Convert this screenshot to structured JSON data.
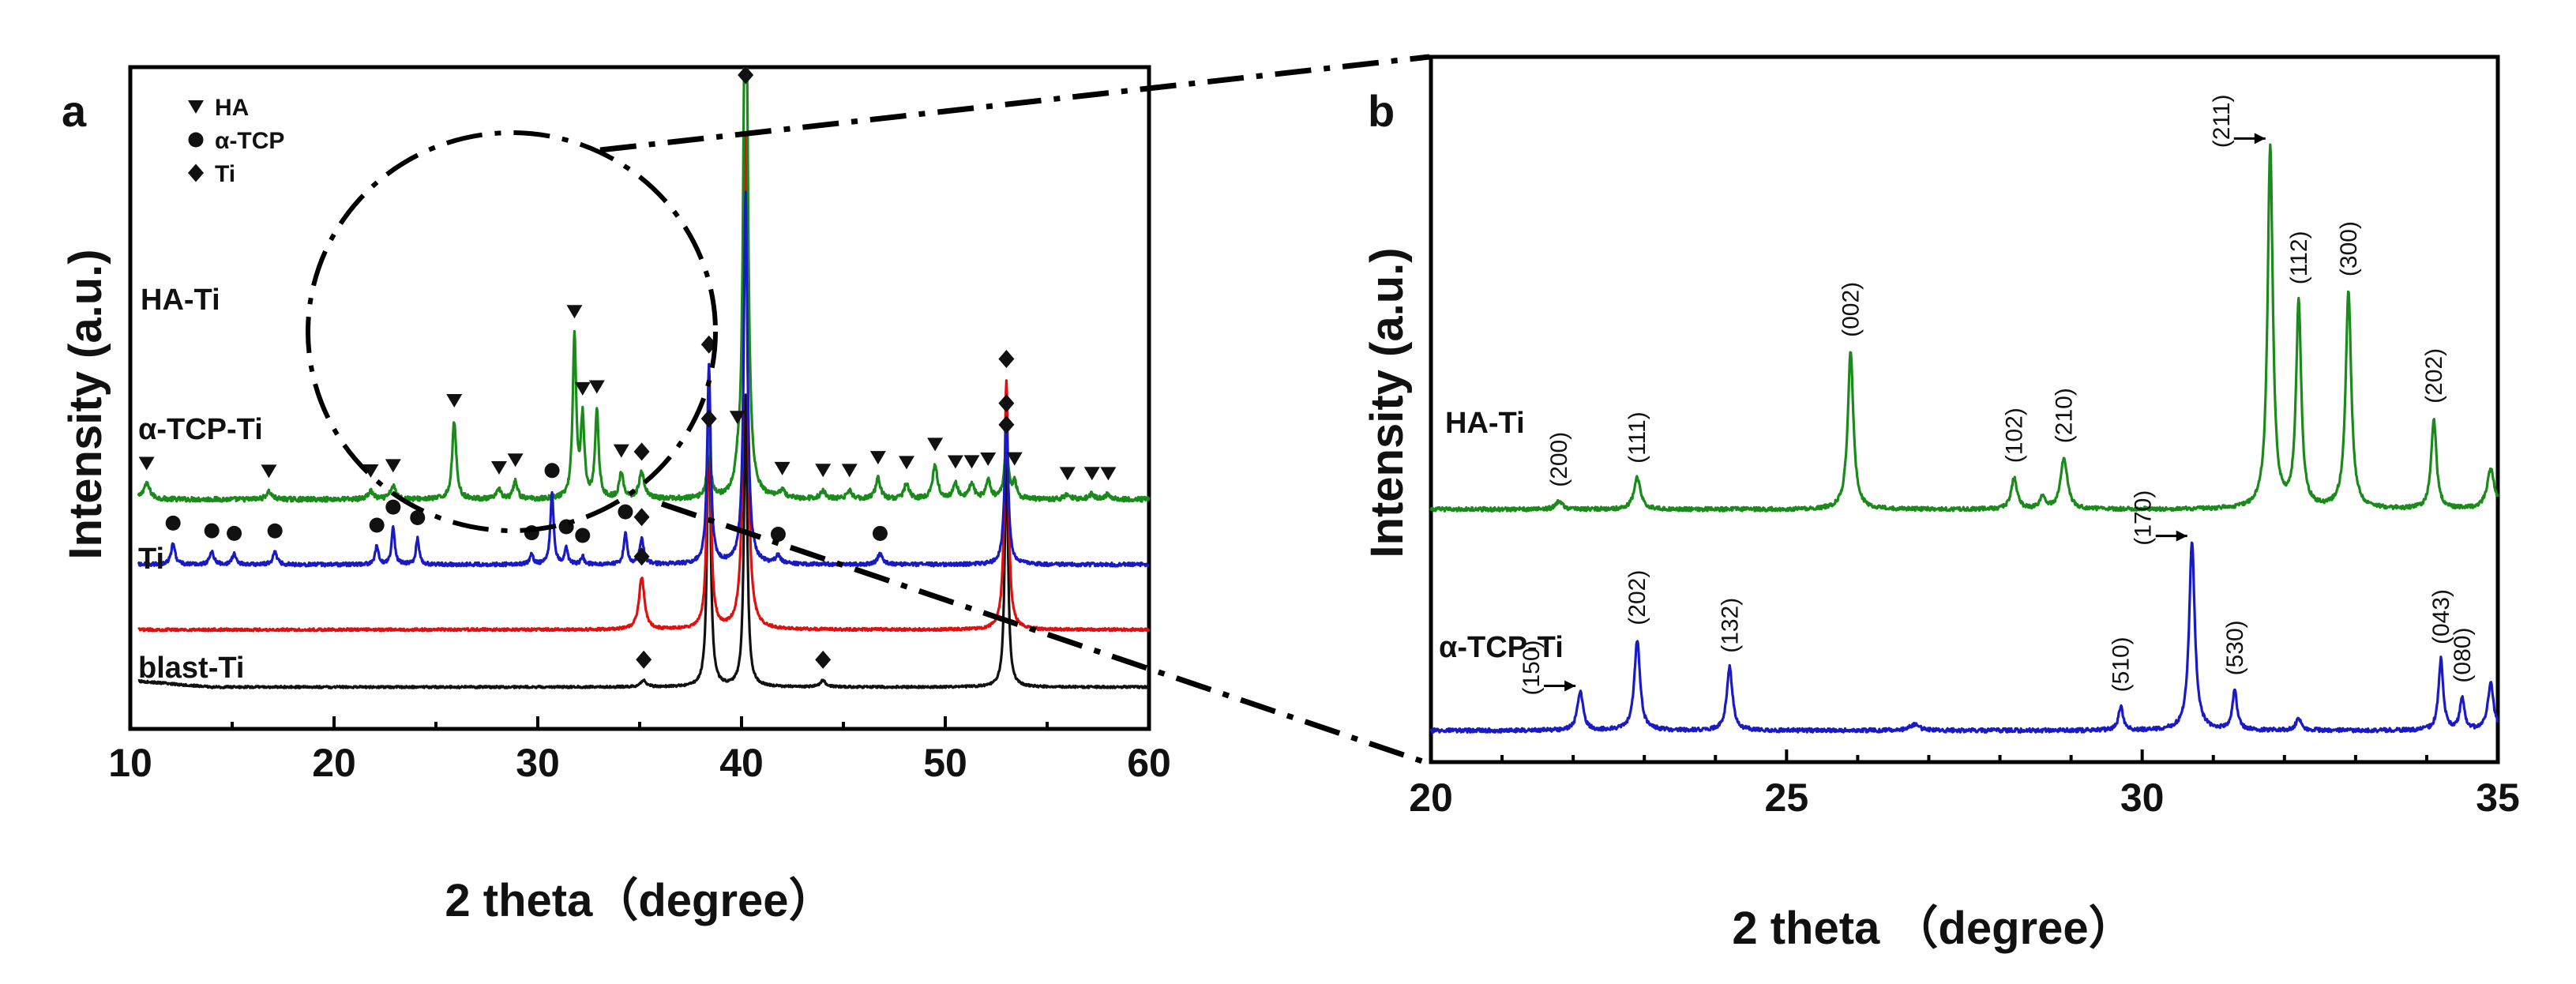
{
  "chart_data": [
    {
      "panel": "a",
      "type": "line",
      "xlabel": "2 theta（degree）",
      "ylabel": "Intensity (a.u.)",
      "xlim": [
        10,
        60
      ],
      "xticks": [
        10,
        20,
        30,
        40,
        50,
        60
      ],
      "y_ticks_shown": false,
      "grid": false,
      "legend": {
        "position": "top-left",
        "entries": [
          {
            "label": "HA",
            "marker": "triangle-down"
          },
          {
            "label": "α-TCP",
            "marker": "circle"
          },
          {
            "label": "Ti",
            "marker": "diamond"
          }
        ]
      },
      "series": [
        {
          "name": "HA-Ti",
          "color": "#1a8a1a",
          "baseline": 0.72,
          "noise": 0.018,
          "peaks": [
            [
              10.8,
              0.06,
              0.25
            ],
            [
              16.8,
              0.03,
              0.2
            ],
            [
              21.8,
              0.03,
              0.2
            ],
            [
              22.9,
              0.05,
              0.2
            ],
            [
              25.9,
              0.3,
              0.15
            ],
            [
              28.1,
              0.04,
              0.15
            ],
            [
              28.9,
              0.07,
              0.15
            ],
            [
              31.8,
              0.62,
              0.13
            ],
            [
              32.2,
              0.3,
              0.13
            ],
            [
              32.9,
              0.34,
              0.13
            ],
            [
              34.1,
              0.1,
              0.15
            ],
            [
              35.1,
              0.1,
              0.2
            ],
            [
              38.4,
              0.22,
              0.13
            ],
            [
              39.8,
              0.05,
              0.15
            ],
            [
              40.2,
              2.6,
              0.14
            ],
            [
              42.0,
              0.03,
              0.2
            ],
            [
              44.0,
              0.03,
              0.2
            ],
            [
              45.3,
              0.03,
              0.2
            ],
            [
              46.7,
              0.08,
              0.18
            ],
            [
              48.1,
              0.06,
              0.18
            ],
            [
              49.5,
              0.13,
              0.18
            ],
            [
              50.5,
              0.06,
              0.18
            ],
            [
              51.3,
              0.06,
              0.18
            ],
            [
              52.1,
              0.07,
              0.18
            ],
            [
              53.0,
              0.2,
              0.15
            ],
            [
              53.4,
              0.06,
              0.15
            ],
            [
              56.0,
              0.02,
              0.2
            ],
            [
              57.2,
              0.02,
              0.2
            ],
            [
              58.0,
              0.02,
              0.2
            ]
          ]
        },
        {
          "name": "α-TCP-Ti",
          "color": "#1a1ac4",
          "baseline": 0.47,
          "noise": 0.014,
          "peaks": [
            [
              12.1,
              0.08,
              0.15
            ],
            [
              14.0,
              0.05,
              0.15
            ],
            [
              15.1,
              0.04,
              0.15
            ],
            [
              17.1,
              0.05,
              0.15
            ],
            [
              22.1,
              0.07,
              0.12
            ],
            [
              22.9,
              0.14,
              0.12
            ],
            [
              24.1,
              0.1,
              0.12
            ],
            [
              29.7,
              0.04,
              0.12
            ],
            [
              30.7,
              0.28,
              0.12
            ],
            [
              31.4,
              0.06,
              0.12
            ],
            [
              32.2,
              0.03,
              0.12
            ],
            [
              34.3,
              0.12,
              0.12
            ],
            [
              35.1,
              0.1,
              0.15
            ],
            [
              38.4,
              0.76,
              0.13
            ],
            [
              40.2,
              1.42,
              0.14
            ],
            [
              41.8,
              0.03,
              0.2
            ],
            [
              46.8,
              0.04,
              0.2
            ],
            [
              53.0,
              0.54,
              0.14
            ]
          ]
        },
        {
          "name": "Ti",
          "color": "#e01010",
          "baseline": 0.22,
          "noise": 0.01,
          "peaks": [
            [
              35.1,
              0.2,
              0.2
            ],
            [
              38.4,
              0.96,
              0.13
            ],
            [
              40.2,
              1.9,
              0.14
            ],
            [
              53.0,
              0.96,
              0.14
            ]
          ]
        },
        {
          "name": "blast-Ti",
          "color": "#111111",
          "baseline": 0.0,
          "noise": 0.008,
          "rise": 0.025,
          "peaks": [
            [
              35.2,
              0.025,
              0.2
            ],
            [
              38.4,
              1.12,
              0.12
            ],
            [
              40.2,
              1.12,
              0.12
            ],
            [
              44.0,
              0.025,
              0.2
            ],
            [
              53.0,
              0.92,
              0.12
            ]
          ]
        }
      ],
      "annotations": {
        "zoom_region_x": [
          20,
          35
        ],
        "markers": [
          {
            "sym": "triangle-down",
            "x": [
              10.8,
              16.8,
              21.8,
              22.9,
              25.9,
              28.1,
              28.9,
              31.8,
              32.2,
              32.9,
              34.1,
              39.8,
              42.0,
              44.0,
              45.3,
              46.7,
              48.1,
              49.5,
              50.5,
              51.3,
              52.1,
              53.4,
              56.0,
              57.2,
              58.0
            ],
            "series": "HA-Ti"
          },
          {
            "sym": "diamond",
            "x": [
              35.1,
              38.4,
              40.2,
              53.0
            ],
            "series": "HA-Ti"
          },
          {
            "sym": "circle",
            "x": [
              12.1,
              14.0,
              15.1,
              17.1,
              22.1,
              22.9,
              24.1,
              29.7,
              30.7,
              31.4,
              32.2,
              34.3,
              41.8,
              46.8
            ],
            "series": "α-TCP-Ti"
          },
          {
            "sym": "diamond",
            "x": [
              35.1,
              38.4,
              53.0
            ],
            "series": "α-TCP-Ti"
          },
          {
            "sym": "diamond",
            "x": [
              35.1,
              53.0
            ],
            "series": "Ti"
          },
          {
            "sym": "diamond",
            "x": [
              35.2,
              44.0
            ],
            "series": "blast-Ti"
          }
        ]
      }
    },
    {
      "panel": "b",
      "type": "line",
      "xlabel": "2 theta （degree）",
      "ylabel": "Intensity (a.u.)",
      "xlim": [
        20,
        35
      ],
      "xticks": [
        20,
        25,
        30,
        35
      ],
      "y_ticks_shown": false,
      "grid": false,
      "series": [
        {
          "name": "HA-Ti",
          "color": "#1a8a1a",
          "baseline": 0.62,
          "noise": 0.01,
          "peaks": [
            [
              21.8,
              0.02,
              0.07
            ],
            [
              22.9,
              0.08,
              0.07
            ],
            [
              25.9,
              0.4,
              0.06
            ],
            [
              28.2,
              0.08,
              0.06
            ],
            [
              28.6,
              0.03,
              0.06
            ],
            [
              28.9,
              0.13,
              0.07
            ],
            [
              31.8,
              0.92,
              0.055
            ],
            [
              32.2,
              0.52,
              0.055
            ],
            [
              32.9,
              0.55,
              0.06
            ],
            [
              34.1,
              0.23,
              0.055
            ],
            [
              34.9,
              0.1,
              0.08
            ]
          ]
        },
        {
          "name": "α-TCP-Ti",
          "color": "#1a1ac4",
          "baseline": 0.06,
          "noise": 0.01,
          "peaks": [
            [
              22.1,
              0.1,
              0.06
            ],
            [
              22.9,
              0.23,
              0.06
            ],
            [
              24.2,
              0.16,
              0.06
            ],
            [
              26.8,
              0.015,
              0.1
            ],
            [
              29.7,
              0.06,
              0.05
            ],
            [
              30.7,
              0.48,
              0.06
            ],
            [
              31.3,
              0.1,
              0.05
            ],
            [
              32.2,
              0.03,
              0.06
            ],
            [
              34.2,
              0.18,
              0.05
            ],
            [
              34.5,
              0.08,
              0.05
            ],
            [
              34.9,
              0.12,
              0.06
            ]
          ]
        }
      ],
      "hkl_labels": [
        {
          "text": "(200)",
          "x": 21.8,
          "series": "HA-Ti"
        },
        {
          "text": "(111)",
          "x": 22.9,
          "series": "HA-Ti"
        },
        {
          "text": "(002)",
          "x": 25.9,
          "series": "HA-Ti"
        },
        {
          "text": "(102)",
          "x": 28.2,
          "series": "HA-Ti"
        },
        {
          "text": "(210)",
          "x": 28.9,
          "series": "HA-Ti"
        },
        {
          "text": "(211)",
          "x": 31.8,
          "series": "HA-Ti",
          "arrow": true
        },
        {
          "text": "(112)",
          "x": 32.2,
          "series": "HA-Ti"
        },
        {
          "text": "(300)",
          "x": 32.9,
          "series": "HA-Ti"
        },
        {
          "text": "(202)",
          "x": 34.1,
          "series": "HA-Ti"
        },
        {
          "text": "(150)",
          "x": 22.1,
          "series": "α-TCP-Ti",
          "arrow": true
        },
        {
          "text": "(202)",
          "x": 22.9,
          "series": "α-TCP-Ti"
        },
        {
          "text": "(132)",
          "x": 24.2,
          "series": "α-TCP-Ti"
        },
        {
          "text": "(510)",
          "x": 29.7,
          "series": "α-TCP-Ti"
        },
        {
          "text": "(170)",
          "x": 30.7,
          "series": "α-TCP-Ti",
          "arrow": true
        },
        {
          "text": "(530)",
          "x": 31.3,
          "series": "α-TCP-Ti"
        },
        {
          "text": "(043)",
          "x": 34.2,
          "series": "α-TCP-Ti"
        },
        {
          "text": "(080)",
          "x": 34.5,
          "series": "α-TCP-Ti"
        }
      ]
    }
  ]
}
